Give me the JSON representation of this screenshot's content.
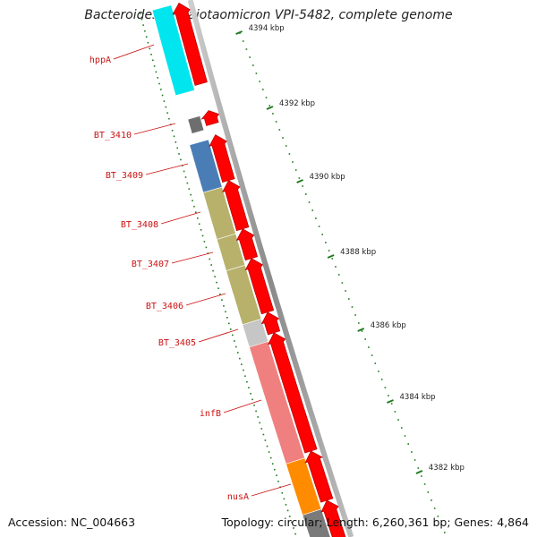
{
  "title": "Bacteroides thetaiotaomicron VPI-5482, complete genome",
  "footer": {
    "accession": "Accession: NC_004663",
    "summary": "Topology: circular; Length: 6,260,361 bp; Genes: 4,864"
  },
  "colors": {
    "backbone": "#8a8a8a",
    "tick": "#1f7a1f",
    "label": "#cc1111",
    "arrow_fill": "#ff0000",
    "arrow_edge": "#b00000"
  },
  "ticks": [
    "4394 kbp",
    "4392 kbp",
    "4390 kbp",
    "4388 kbp",
    "4386 kbp",
    "4384 kbp",
    "4382 kbp"
  ],
  "genes": [
    {
      "name": "hppA",
      "color": "#00e5ee"
    },
    {
      "name": "BT_3410",
      "color": "#6e6e6e"
    },
    {
      "name": "BT_3409",
      "color": "#4a7db5"
    },
    {
      "name": "BT_3408",
      "color": "#b7b16c"
    },
    {
      "name": "BT_3407",
      "color": "#b7b16c"
    },
    {
      "name": "BT_3406",
      "color": "#b7b16c"
    },
    {
      "name": "BT_3405",
      "color": "#c6c6c6"
    },
    {
      "name": "infB",
      "color": "#f08080"
    },
    {
      "name": "nusA",
      "color": "#ff8c00"
    }
  ]
}
